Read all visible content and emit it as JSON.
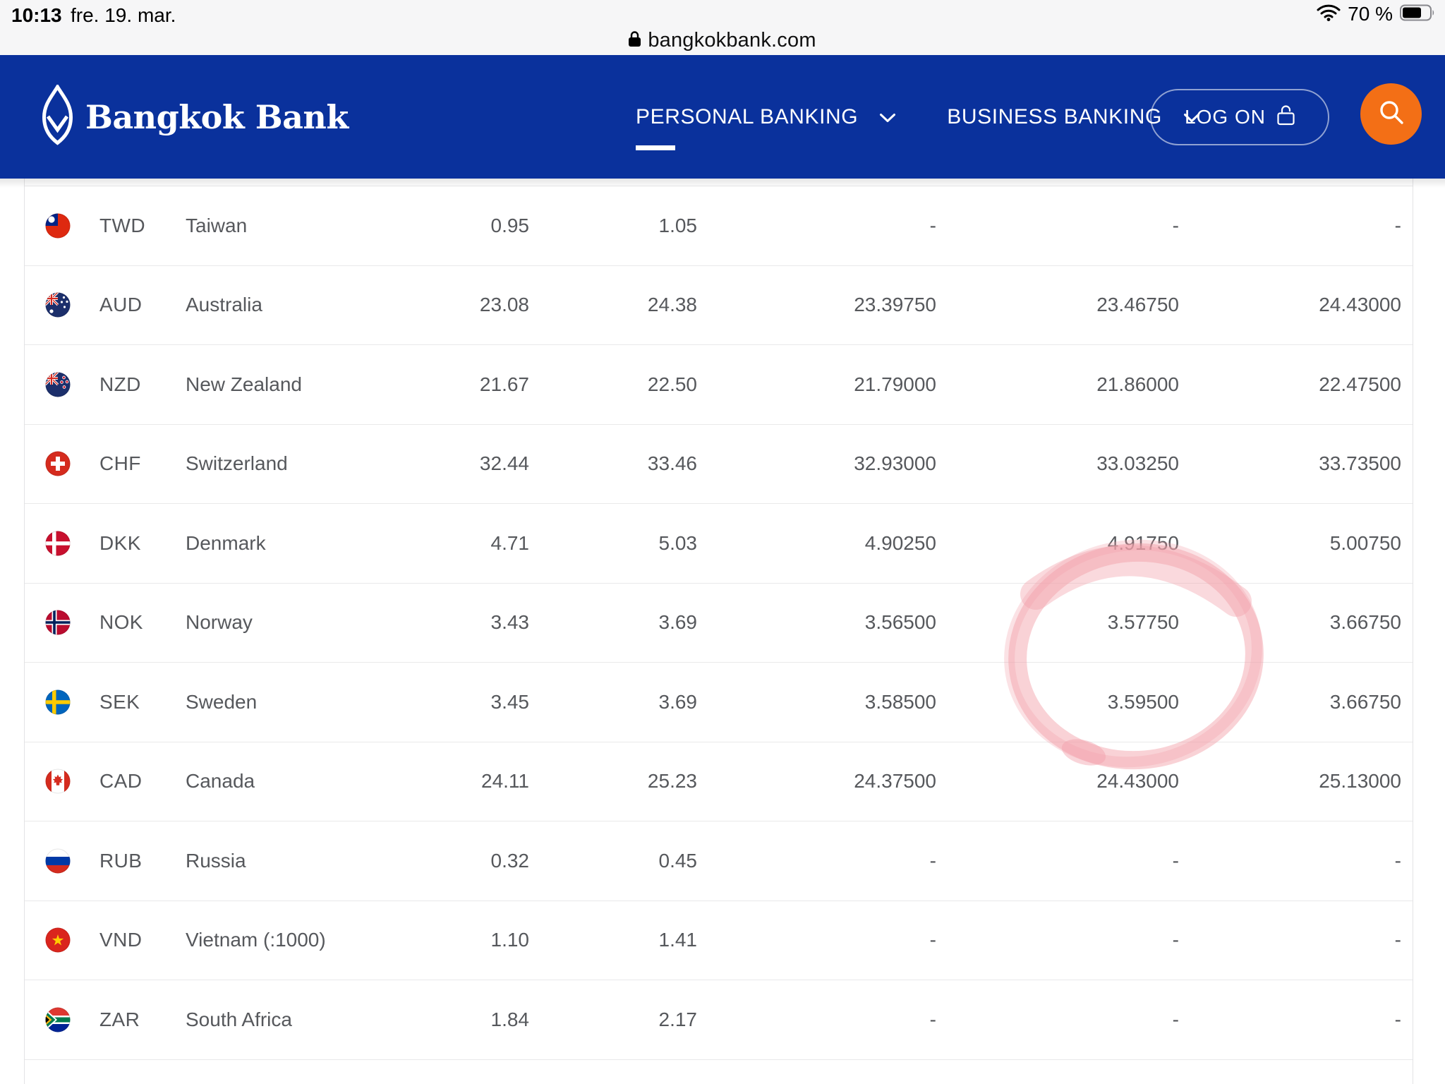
{
  "status_bar": {
    "time": "10:13",
    "date": "fre. 19. mar.",
    "battery": "70 %",
    "wifi_icon": "wifi-icon",
    "battery_icon": "battery-icon"
  },
  "browser": {
    "url": "bangkokbank.com",
    "lock_icon": "lock-icon"
  },
  "header": {
    "brand": "Bangkok Bank",
    "brand_icon": "lotus-logo-icon",
    "nav": [
      {
        "label": "PERSONAL BANKING",
        "active": true
      },
      {
        "label": "BUSINESS BANKING",
        "active": false
      }
    ],
    "log_on_label": "LOG ON",
    "search_icon": "search-icon"
  },
  "rates_table": {
    "rows": [
      {
        "code": "TWD",
        "country": "Taiwan",
        "flag": "taiwan",
        "values": [
          "0.95",
          "1.05",
          "-",
          "-",
          "-"
        ]
      },
      {
        "code": "AUD",
        "country": "Australia",
        "flag": "australia",
        "values": [
          "23.08",
          "24.38",
          "23.39750",
          "23.46750",
          "24.43000"
        ]
      },
      {
        "code": "NZD",
        "country": "New Zealand",
        "flag": "new-zealand",
        "values": [
          "21.67",
          "22.50",
          "21.79000",
          "21.86000",
          "22.47500"
        ]
      },
      {
        "code": "CHF",
        "country": "Switzerland",
        "flag": "switzerland",
        "values": [
          "32.44",
          "33.46",
          "32.93000",
          "33.03250",
          "33.73500"
        ]
      },
      {
        "code": "DKK",
        "country": "Denmark",
        "flag": "denmark",
        "values": [
          "4.71",
          "5.03",
          "4.90250",
          "4.91750",
          "5.00750"
        ]
      },
      {
        "code": "NOK",
        "country": "Norway",
        "flag": "norway",
        "values": [
          "3.43",
          "3.69",
          "3.56500",
          "3.57750",
          "3.66750"
        ]
      },
      {
        "code": "SEK",
        "country": "Sweden",
        "flag": "sweden",
        "values": [
          "3.45",
          "3.69",
          "3.58500",
          "3.59500",
          "3.66750"
        ]
      },
      {
        "code": "CAD",
        "country": "Canada",
        "flag": "canada",
        "values": [
          "24.11",
          "25.23",
          "24.37500",
          "24.43000",
          "25.13000"
        ]
      },
      {
        "code": "RUB",
        "country": "Russia",
        "flag": "russia",
        "values": [
          "0.32",
          "0.45",
          "-",
          "-",
          "-"
        ]
      },
      {
        "code": "VND",
        "country": "Vietnam (:1000)",
        "flag": "vietnam",
        "values": [
          "1.10",
          "1.41",
          "-",
          "-",
          "-"
        ]
      },
      {
        "code": "ZAR",
        "country": "South Africa",
        "flag": "south-africa",
        "values": [
          "1.84",
          "2.17",
          "-",
          "-",
          "-"
        ]
      }
    ]
  },
  "annotation": {
    "shape": "hand-drawn-ellipse",
    "around": [
      "NOK 3.57750",
      "SEK 3.59500"
    ],
    "color": "#f2a0aa"
  },
  "colors": {
    "header_blue": "#0a319c",
    "accent_orange": "#f36f16",
    "row_text": "#56585c",
    "annotation_pink": "#f2a0aa"
  }
}
